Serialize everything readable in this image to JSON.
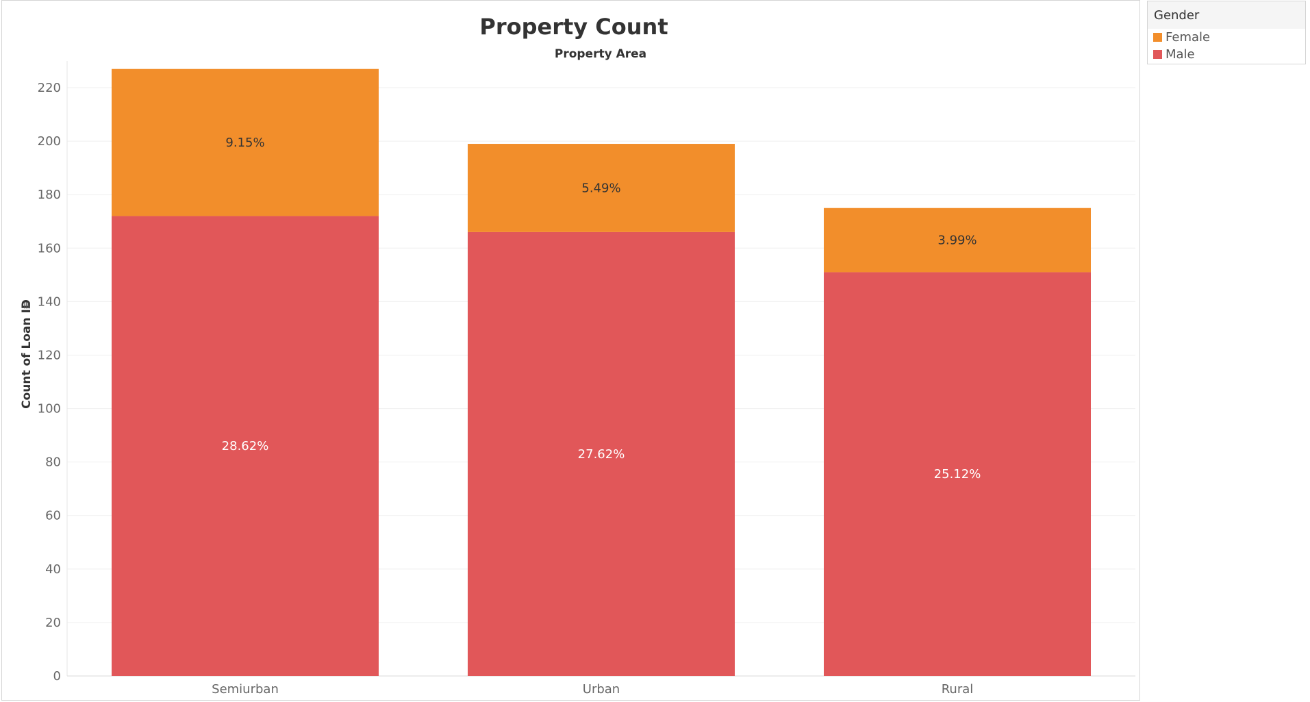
{
  "chart_data": {
    "type": "bar",
    "stacked": true,
    "title": "Property Count",
    "column_header": "Property Area",
    "ylabel": "Count of Loan ID",
    "ylabel_icon": "sort-icon",
    "xlabel": "",
    "categories": [
      "Semiurban",
      "Urban",
      "Rural"
    ],
    "ylim": [
      0,
      230
    ],
    "yticks": [
      0,
      20,
      40,
      60,
      80,
      100,
      120,
      140,
      160,
      180,
      200,
      220
    ],
    "grid": true,
    "legend_position": "top-right",
    "series": [
      {
        "name": "Male",
        "color": "#e15759",
        "values": [
          172,
          166,
          151
        ],
        "labels": [
          "28.62%",
          "27.62%",
          "25.12%"
        ],
        "label_color": "#ffffff"
      },
      {
        "name": "Female",
        "color": "#f28e2b",
        "values": [
          55,
          33,
          24
        ],
        "labels": [
          "9.15%",
          "5.49%",
          "3.99%"
        ],
        "label_color": "#333333"
      }
    ]
  },
  "legend": {
    "title": "Gender",
    "items": [
      {
        "label": "Female",
        "color": "#f28e2b"
      },
      {
        "label": "Male",
        "color": "#e15759"
      }
    ]
  }
}
